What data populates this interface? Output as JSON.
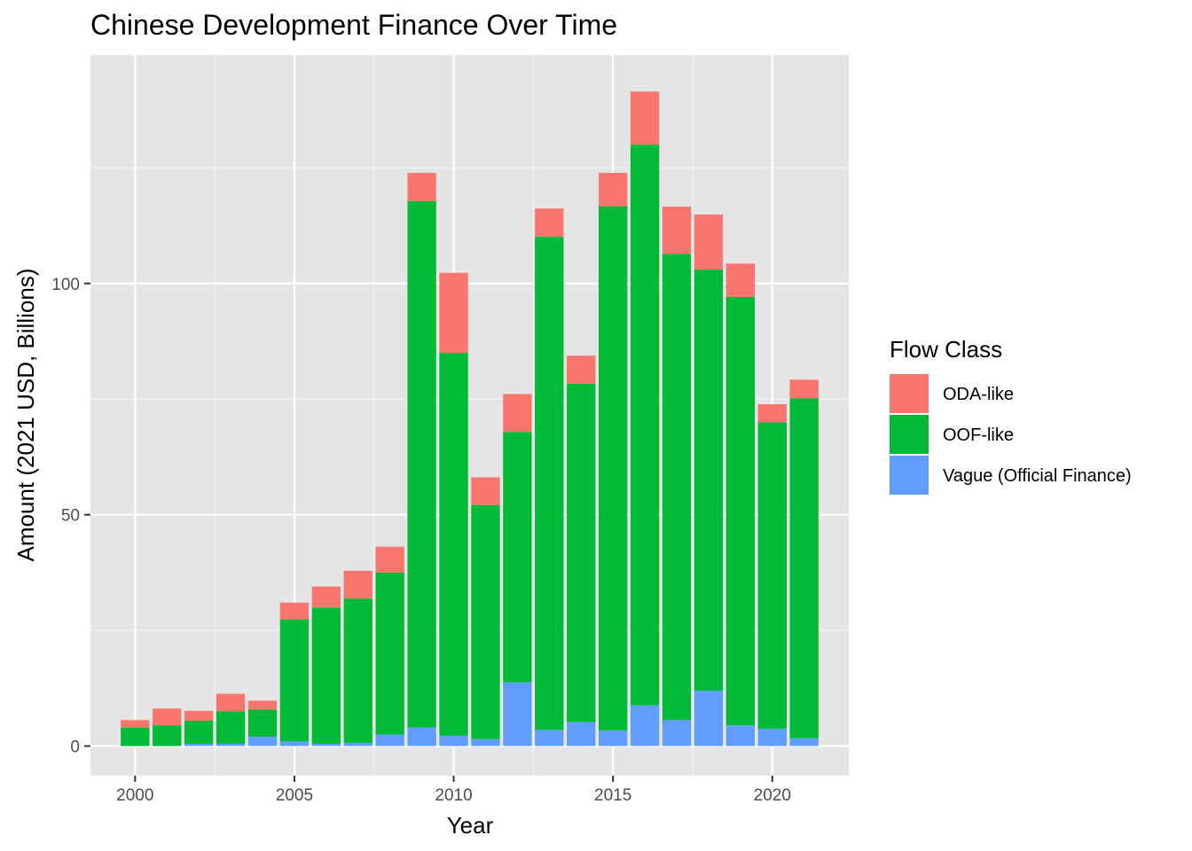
{
  "chart_data": {
    "type": "bar",
    "stacked": true,
    "title": "Chinese Development Finance Over Time",
    "xlabel": "Year",
    "ylabel": "Amount (2021 USD, Billions)",
    "x": [
      2000,
      2001,
      2002,
      2003,
      2004,
      2005,
      2006,
      2007,
      2008,
      2009,
      2010,
      2011,
      2012,
      2013,
      2014,
      2015,
      2016,
      2017,
      2018,
      2019,
      2020,
      2021
    ],
    "x_ticks": [
      2000,
      2005,
      2010,
      2015,
      2020
    ],
    "y_ticks": [
      0,
      50,
      100
    ],
    "xlim": [
      1998.6,
      2022.4
    ],
    "ylim": [
      -6.4,
      149.4
    ],
    "grid": true,
    "legend_position": "right",
    "legend_title": "Flow Class",
    "series": [
      {
        "name": "Vague (Official Finance)",
        "color": "#619CFF",
        "values": [
          0.0,
          0.0,
          0.5,
          0.5,
          2.0,
          1.0,
          0.5,
          0.7,
          2.5,
          4.0,
          2.2,
          1.5,
          13.8,
          3.5,
          5.2,
          3.4,
          8.8,
          5.6,
          12.0,
          4.5,
          3.7,
          1.7
        ]
      },
      {
        "name": "OOF-like",
        "color": "#00BA38",
        "values": [
          4.0,
          4.5,
          5.0,
          7.0,
          5.9,
          26.4,
          29.4,
          31.2,
          35.0,
          113.8,
          82.8,
          50.6,
          54.1,
          106.6,
          73.1,
          113.3,
          121.2,
          100.8,
          91.0,
          92.6,
          66.3,
          73.5
        ]
      },
      {
        "name": "ODA-like",
        "color": "#F8766D",
        "values": [
          1.6,
          3.6,
          2.1,
          3.8,
          1.9,
          3.6,
          4.6,
          6.0,
          5.6,
          6.1,
          17.3,
          6.0,
          8.2,
          6.1,
          6.1,
          7.2,
          11.5,
          10.2,
          11.9,
          7.2,
          3.9,
          4.0
        ]
      }
    ]
  }
}
